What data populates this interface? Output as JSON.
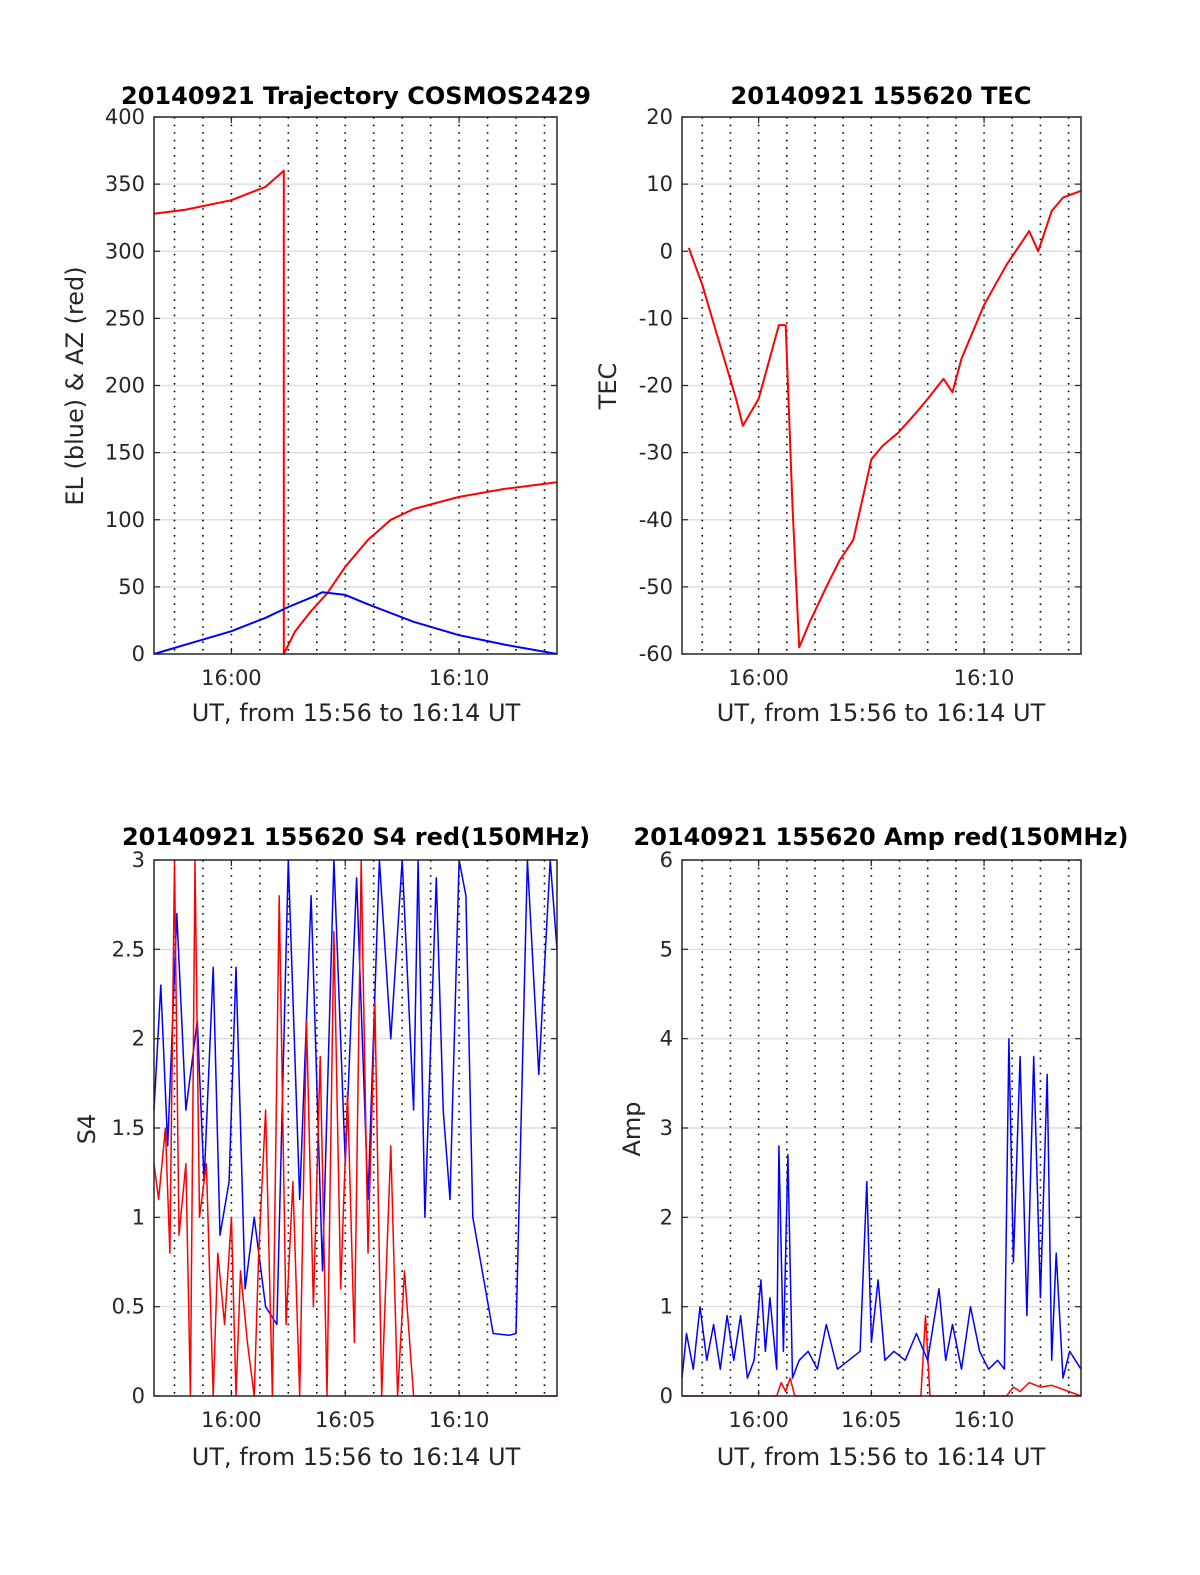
{
  "chart_data": [
    {
      "id": "p1",
      "type": "line",
      "title": "20140921 Trajectory COSMOS2429",
      "xlabel": "UT, from 15:56 to 16:14 UT",
      "ylabel": "EL (blue) & AZ (red)",
      "xlim": [
        -3.4,
        14.3
      ],
      "ylim": [
        0,
        400
      ],
      "x_ticks": [
        0,
        10
      ],
      "x_tick_labels": [
        "16:00",
        "16:10"
      ],
      "y_ticks": [
        0,
        50,
        100,
        150,
        200,
        250,
        300,
        350,
        400
      ],
      "y_tick_labels": [
        "0",
        "50",
        "100",
        "150",
        "200",
        "250",
        "300",
        "350",
        "400"
      ],
      "x_gridlines": [
        -2.5,
        -1.25,
        0,
        1.25,
        2.5,
        3.75,
        5,
        6.25,
        7.5,
        8.75,
        10,
        11.25,
        12.5,
        13.75
      ],
      "y_gridlines": [
        50,
        100,
        150,
        200,
        250,
        300,
        350
      ],
      "grid": true,
      "series": [
        {
          "color": "#ff0000",
          "width": 2,
          "x": [
            -3.4,
            -2,
            0,
            1.5,
            2.3,
            2.3,
            2.8,
            3.5,
            4.2,
            5,
            6,
            7,
            8,
            10,
            12,
            14.3
          ],
          "y": [
            328,
            331,
            338,
            348,
            360,
            0,
            17,
            32,
            45,
            65,
            85,
            100,
            108,
            117,
            123,
            128
          ]
        },
        {
          "color": "#0000ff",
          "width": 2,
          "x": [
            -3.4,
            -2,
            0,
            1.5,
            2.5,
            3.5,
            4,
            5,
            6,
            8,
            10,
            12,
            14.3
          ],
          "y": [
            0,
            7,
            17,
            27,
            35,
            42,
            46,
            44,
            37,
            24,
            14,
            7,
            0
          ]
        }
      ]
    },
    {
      "id": "p2",
      "type": "line",
      "title": "20140921 155620 TEC",
      "xlabel": "UT, from 15:56 to 16:14 UT",
      "ylabel": "TEC",
      "xlim": [
        -3.4,
        14.3
      ],
      "ylim": [
        -60,
        20
      ],
      "x_ticks": [
        0,
        10
      ],
      "x_tick_labels": [
        "16:00",
        "16:10"
      ],
      "y_ticks": [
        -60,
        -50,
        -40,
        -30,
        -20,
        -10,
        0,
        10,
        20
      ],
      "y_tick_labels": [
        "-60",
        "-50",
        "-40",
        "-30",
        "-20",
        "-10",
        "0",
        "10",
        "20"
      ],
      "x_gridlines": [
        -2.5,
        -1.25,
        0,
        1.25,
        2.5,
        3.75,
        5,
        6.25,
        7.5,
        8.75,
        10,
        11.25,
        12.5,
        13.75
      ],
      "y_gridlines": [
        -50,
        -40,
        -30,
        -20,
        -10,
        0,
        10
      ],
      "grid": true,
      "series": [
        {
          "color": "#ff0000",
          "width": 2,
          "x": [
            -3.1,
            -2.5,
            -1.8,
            -1.0,
            -0.7,
            0,
            0.9,
            1.2,
            1.5,
            1.8,
            2.3,
            3.0,
            3.6,
            4.2,
            5.0,
            5.5,
            6.2,
            7.0,
            7.5,
            8.2,
            8.6,
            9.0,
            9.5,
            10.0,
            10.5,
            11.0,
            11.5,
            12.0,
            12.4,
            13.0,
            13.5,
            14.3
          ],
          "y": [
            0.5,
            -5,
            -13,
            -22,
            -26,
            -22,
            -11,
            -11,
            -38,
            -59,
            -55,
            -50,
            -46,
            -43,
            -31,
            -29,
            -27,
            -24,
            -22,
            -19,
            -21,
            -16,
            -12,
            -8,
            -5,
            -2,
            0.5,
            3,
            0,
            6,
            8,
            9
          ]
        }
      ]
    },
    {
      "id": "p3",
      "type": "line",
      "title": "20140921 155620 S4 red(150MHz)",
      "xlabel": "UT, from 15:56 to 16:14 UT",
      "ylabel": "S4",
      "xlim": [
        -3.4,
        14.3
      ],
      "ylim": [
        0,
        3
      ],
      "x_ticks": [
        0,
        5,
        10
      ],
      "x_tick_labels": [
        "16:00",
        "16:05",
        "16:10"
      ],
      "y_ticks": [
        0,
        0.5,
        1,
        1.5,
        2,
        2.5,
        3
      ],
      "y_tick_labels": [
        "0",
        "0.5",
        "1",
        "1.5",
        "2",
        "2.5",
        "3"
      ],
      "x_gridlines": [
        -2.5,
        -1.25,
        0,
        1.25,
        2.5,
        3.75,
        5,
        6.25,
        7.5,
        8.75,
        10,
        11.25,
        12.5,
        13.75
      ],
      "y_gridlines": [
        0.5,
        1,
        1.5,
        2,
        2.5
      ],
      "grid": true,
      "series": [
        {
          "color": "#0000ff",
          "width": 1.5,
          "x": [
            -3.4,
            -3.1,
            -2.8,
            -2.4,
            -2.0,
            -1.5,
            -1.2,
            -0.8,
            -0.5,
            -0.1,
            0.2,
            0.6,
            1.0,
            1.5,
            2.0,
            2.5,
            3.0,
            3.5,
            4.0,
            4.5,
            5.0,
            5.5,
            6.0,
            6.5,
            7.0,
            7.5,
            8.0,
            8.2,
            8.5,
            9.0,
            9.3,
            9.6,
            10.0,
            10.3,
            10.6,
            11.5,
            12.2,
            12.5,
            13.0,
            13.5,
            14.0,
            14.3
          ],
          "y": [
            1.6,
            2.3,
            1.4,
            2.7,
            1.6,
            2.1,
            1.2,
            2.4,
            0.9,
            1.2,
            2.4,
            0.6,
            1.0,
            0.5,
            0.4,
            3.0,
            1.1,
            2.8,
            0.7,
            3.0,
            1.3,
            2.9,
            1.1,
            3.0,
            2.0,
            3.0,
            1.6,
            3.0,
            1.0,
            2.9,
            1.6,
            1.1,
            3.0,
            2.8,
            1.0,
            0.35,
            0.34,
            0.35,
            3.0,
            1.8,
            3.0,
            2.5
          ]
        },
        {
          "color": "#ff0000",
          "width": 1.5,
          "x": [
            -3.4,
            -3.2,
            -2.9,
            -2.7,
            -2.5,
            -2.3,
            -2.0,
            -1.8,
            -1.6,
            -1.4,
            -1.1,
            -0.8,
            -0.6,
            -0.3,
            0,
            0.2,
            0.4,
            0.7,
            1.0,
            1.2,
            1.5,
            1.8,
            2.1,
            2.4,
            2.7,
            3.0,
            3.3,
            3.6,
            3.9,
            4.2,
            4.5,
            4.8,
            5.1,
            5.4,
            5.7,
            6.0,
            6.3,
            6.6,
            7.0,
            7.3,
            7.6,
            8.0,
            8.3,
            8.6,
            9.0,
            9.5,
            10,
            11,
            12,
            13,
            14.3
          ],
          "y": [
            1.3,
            1.1,
            1.5,
            0.8,
            3.0,
            0.9,
            1.3,
            0,
            3.0,
            1.0,
            1.3,
            0,
            0.8,
            0.4,
            1.0,
            0,
            0.7,
            0.3,
            0,
            0.8,
            1.6,
            0,
            2.8,
            0.4,
            1.2,
            0,
            2.1,
            0.5,
            1.9,
            0,
            2.6,
            0.6,
            1.7,
            0.3,
            3.0,
            0.8,
            2.2,
            0,
            1.4,
            0,
            0.7,
            0,
            0,
            0,
            0,
            0,
            0,
            0,
            0,
            0,
            0
          ]
        }
      ]
    },
    {
      "id": "p4",
      "type": "line",
      "title": "20140921 155620 Amp red(150MHz)",
      "xlabel": "UT, from 15:56 to 16:14 UT",
      "ylabel": "Amp",
      "xlim": [
        -3.4,
        14.3
      ],
      "ylim": [
        0,
        6
      ],
      "x_ticks": [
        0,
        5,
        10
      ],
      "x_tick_labels": [
        "16:00",
        "16:05",
        "16:10"
      ],
      "y_ticks": [
        0,
        1,
        2,
        3,
        4,
        5,
        6
      ],
      "y_tick_labels": [
        "0",
        "1",
        "2",
        "3",
        "4",
        "5",
        "6"
      ],
      "x_gridlines": [
        -2.5,
        -1.25,
        0,
        1.25,
        2.5,
        3.75,
        5,
        6.25,
        7.5,
        8.75,
        10,
        11.25,
        12.5,
        13.75
      ],
      "y_gridlines": [
        1,
        2,
        3,
        4,
        5
      ],
      "grid": true,
      "series": [
        {
          "color": "#ff0000",
          "width": 1.5,
          "x": [
            -3.4,
            0.8,
            1.0,
            1.2,
            1.4,
            1.6,
            7.2,
            7.4,
            7.6,
            11.0,
            11.3,
            11.6,
            12.0,
            12.5,
            13.0,
            14.3
          ],
          "y": [
            0,
            0,
            0.15,
            0.05,
            0.2,
            0,
            0,
            0.9,
            0,
            0,
            0.1,
            0.05,
            0.15,
            0.1,
            0.12,
            0
          ]
        },
        {
          "color": "#0000ff",
          "width": 1.5,
          "x": [
            -3.4,
            -3.2,
            -2.9,
            -2.6,
            -2.3,
            -2.0,
            -1.7,
            -1.4,
            -1.1,
            -0.8,
            -0.5,
            -0.2,
            0.1,
            0.3,
            0.5,
            0.8,
            0.9,
            1.1,
            1.3,
            1.5,
            1.8,
            2.2,
            2.6,
            3.0,
            3.5,
            4.0,
            4.5,
            4.8,
            5.0,
            5.3,
            5.6,
            6.0,
            6.5,
            7.0,
            7.5,
            8.0,
            8.3,
            8.6,
            9.0,
            9.4,
            9.8,
            10.2,
            10.6,
            10.9,
            11.1,
            11.3,
            11.6,
            11.9,
            12.2,
            12.5,
            12.8,
            13.0,
            13.2,
            13.5,
            13.8,
            14.3
          ],
          "y": [
            0.2,
            0.7,
            0.3,
            1.0,
            0.4,
            0.8,
            0.3,
            0.9,
            0.4,
            0.9,
            0.2,
            0.4,
            1.3,
            0.5,
            1.1,
            0.3,
            2.8,
            0.5,
            2.7,
            0.2,
            0.4,
            0.5,
            0.3,
            0.8,
            0.3,
            0.4,
            0.5,
            2.4,
            0.6,
            1.3,
            0.4,
            0.5,
            0.4,
            0.7,
            0.4,
            1.2,
            0.4,
            0.8,
            0.3,
            1.0,
            0.5,
            0.3,
            0.4,
            0.3,
            4.0,
            1.5,
            3.8,
            0.9,
            3.8,
            1.1,
            3.6,
            0.4,
            1.6,
            0.2,
            0.5,
            0.3
          ]
        }
      ]
    }
  ]
}
